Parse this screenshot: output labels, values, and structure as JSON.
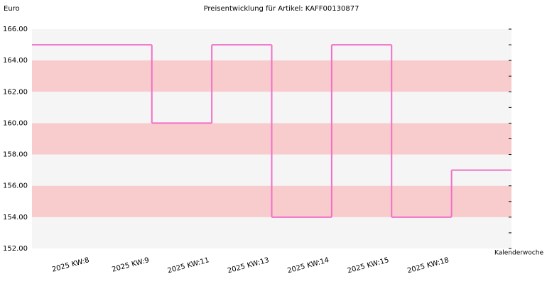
{
  "chart_data": {
    "type": "step",
    "title": "Preisentwicklung für Artikel: KAFF00130877",
    "y_label": "Euro",
    "x_label": "Kalenderwoche",
    "categories": [
      "2025 KW:8",
      "2025 KW:9",
      "2025 KW:11",
      "2025 KW:13",
      "2025 KW:14",
      "2025 KW:15",
      "2025 KW:18"
    ],
    "values": [
      165,
      160,
      165,
      154,
      165,
      154,
      157
    ],
    "color": "#f070c8",
    "ylim": [
      152,
      166
    ],
    "yticks": [
      {
        "value": 152,
        "label": "152.00"
      },
      {
        "value": 154,
        "label": "154.00"
      },
      {
        "value": 156,
        "label": "156.00"
      },
      {
        "value": 158,
        "label": "158.00"
      },
      {
        "value": 160,
        "label": "160.00"
      },
      {
        "value": 162,
        "label": "162.00"
      },
      {
        "value": 164,
        "label": "164.00"
      },
      {
        "value": 166,
        "label": "166.00"
      }
    ],
    "plot_background": "#f5f5f5",
    "band_color": "#f8cccc"
  }
}
